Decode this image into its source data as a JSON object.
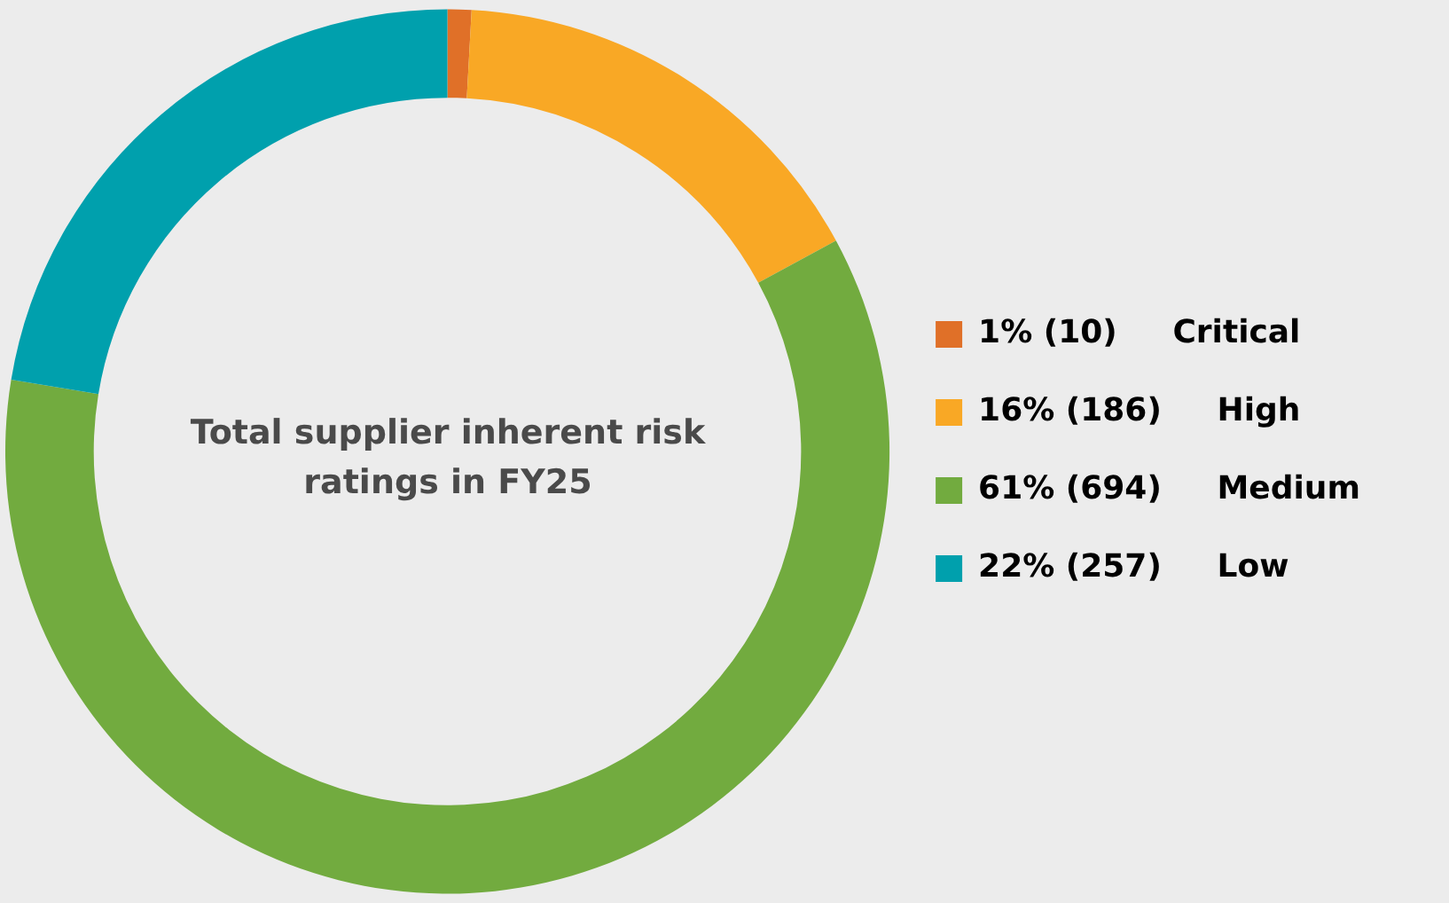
{
  "chart_data": {
    "type": "donut",
    "title": "Total supplier inherent risk ratings in FY25",
    "categories": [
      "Critical",
      "High",
      "Medium",
      "Low"
    ],
    "values": [
      10,
      186,
      694,
      257
    ],
    "colors": [
      "#e07028",
      "#f9a825",
      "#72ab3f",
      "#00a0ad"
    ],
    "value_labels": [
      "1% (10)",
      "16% (186)",
      "61% (694)",
      "22% (257)"
    ],
    "legend": "right"
  }
}
